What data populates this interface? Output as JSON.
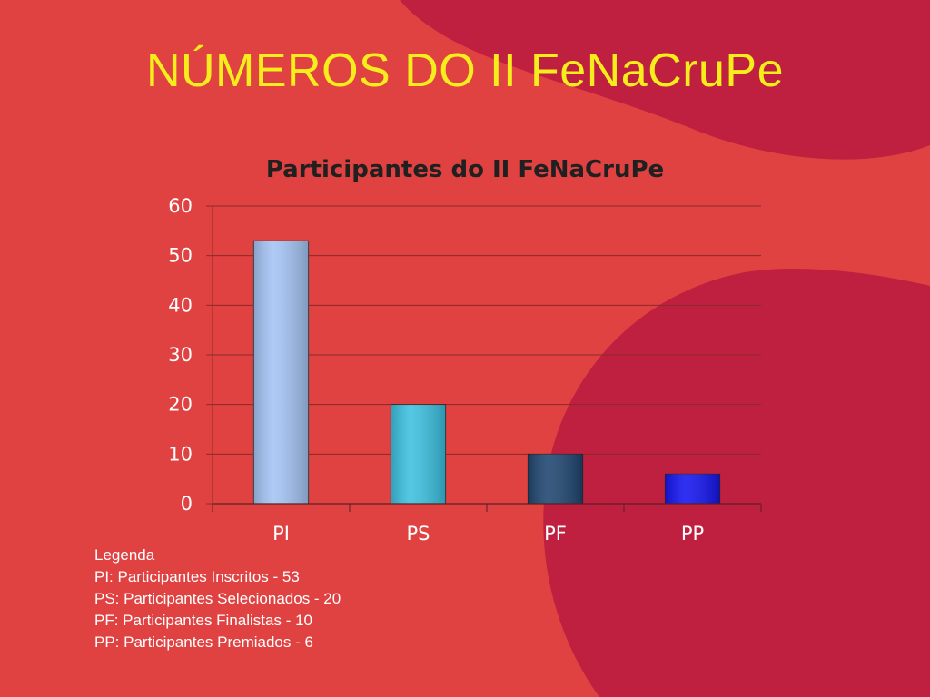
{
  "slide": {
    "title": "NÚMEROS DO II FeNaCruPe"
  },
  "colors": {
    "background": "#e04242",
    "blob": "#c02040",
    "title": "#f5ee1c",
    "grid": "#8a2a2a"
  },
  "chart_data": {
    "type": "bar",
    "title": "Participantes do II FeNaCruPe",
    "categories": [
      "PI",
      "PS",
      "PF",
      "PP"
    ],
    "values": [
      53,
      20,
      10,
      6
    ],
    "bar_colors": [
      "#a4c4f4",
      "#3cc0e0",
      "#1f4570",
      "#1414f0"
    ],
    "ylim": [
      0,
      60
    ],
    "yticks": [
      0,
      10,
      20,
      30,
      40,
      50,
      60
    ],
    "xlabel": "",
    "ylabel": "",
    "grid": true,
    "legend": "none"
  },
  "legend": {
    "heading": "Legenda",
    "items": [
      "PI: Participantes Inscritos - 53",
      "PS: Participantes Selecionados - 20",
      "PF: Participantes Finalistas - 10",
      "PP: Participantes Premiados - 6"
    ]
  }
}
